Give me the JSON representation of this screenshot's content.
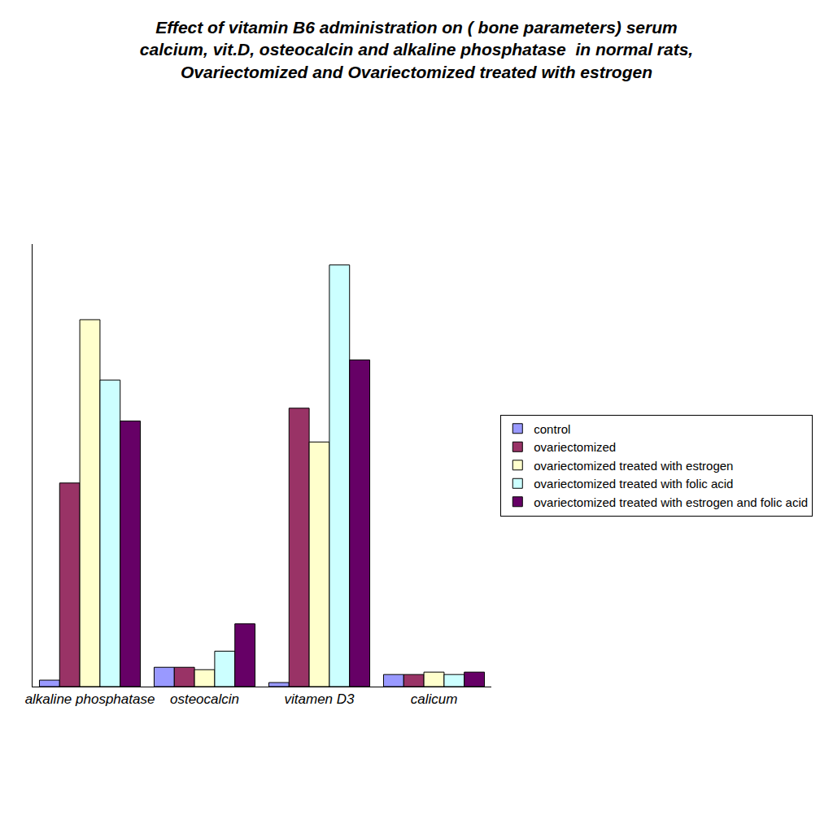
{
  "chart_data": {
    "type": "bar",
    "title": "Effect of vitamin B6 administration on ( bone parameters) serum\ncalcium, vit.D, osteocalcin and alkaline phosphatase  in normal rats,\nOvariectomized and Ovariectomized treated with estrogen",
    "categories": [
      "alkaline phosphatase",
      "osteocalcin",
      "vitamen D3",
      "calicum"
    ],
    "series": [
      {
        "name": "control",
        "color": "#9999ff",
        "values": [
          8,
          24,
          5,
          15
        ]
      },
      {
        "name": "ovariectomized",
        "color": "#993366",
        "values": [
          253,
          24,
          346,
          15
        ]
      },
      {
        "name": "ovariectomized treated with estrogen",
        "color": "#ffffcc",
        "values": [
          456,
          21,
          304,
          18
        ]
      },
      {
        "name": "ovariectomized treated with folic acid",
        "color": "#ccffff",
        "values": [
          381,
          44,
          524,
          15
        ]
      },
      {
        "name": "ovariectomized treated with estrogen and folic acid",
        "color": "#660066",
        "values": [
          330,
          78,
          406,
          18
        ]
      }
    ],
    "ylim": [
      0,
      550
    ],
    "grid": false,
    "legend": "right",
    "tick_labels": "x"
  }
}
